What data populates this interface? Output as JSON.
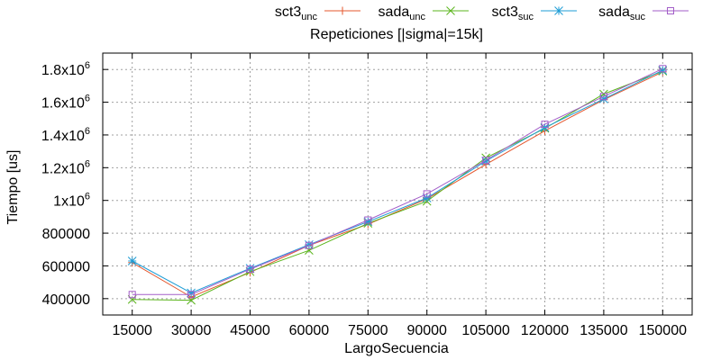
{
  "chart_data": {
    "type": "line",
    "title": "Repeticiones [|sigma|=15k]",
    "xlabel": "LargoSecuencia",
    "ylabel": "Tiempo [us]",
    "x": [
      15000,
      30000,
      45000,
      60000,
      75000,
      90000,
      105000,
      120000,
      135000,
      150000
    ],
    "x_tick_labels": [
      "15000",
      "30000",
      "45000",
      "60000",
      "75000",
      "90000",
      "105000",
      "120000",
      "135000",
      "150000"
    ],
    "ylim": [
      300000,
      1900000
    ],
    "y_ticks": [
      {
        "value": 400000,
        "base": "400000",
        "sup": ""
      },
      {
        "value": 600000,
        "base": "600000",
        "sup": ""
      },
      {
        "value": 800000,
        "base": "800000",
        "sup": ""
      },
      {
        "value": 1000000,
        "base": "1x10",
        "sup": "6"
      },
      {
        "value": 1200000,
        "base": "1.2x10",
        "sup": "6"
      },
      {
        "value": 1400000,
        "base": "1.4x10",
        "sup": "6"
      },
      {
        "value": 1600000,
        "base": "1.6x10",
        "sup": "6"
      },
      {
        "value": 1800000,
        "base": "1.8x10",
        "sup": "6"
      }
    ],
    "grid": true,
    "legend_position": "top-right",
    "series": [
      {
        "name": "sct3",
        "sub": "unc",
        "color": "#e4572e",
        "marker": "plus",
        "values": [
          620000,
          410000,
          560000,
          725000,
          855000,
          1010000,
          1220000,
          1425000,
          1615000,
          1785000
        ]
      },
      {
        "name": "sada",
        "sub": "unc",
        "color": "#5bb51c",
        "marker": "cross",
        "values": [
          395000,
          390000,
          565000,
          695000,
          860000,
          995000,
          1260000,
          1440000,
          1650000,
          1790000
        ]
      },
      {
        "name": "sct3",
        "sub": "suc",
        "color": "#1e9dd6",
        "marker": "star",
        "values": [
          630000,
          435000,
          585000,
          730000,
          870000,
          1015000,
          1240000,
          1445000,
          1620000,
          1795000
        ]
      },
      {
        "name": "sada",
        "sub": "suc",
        "color": "#a35ec8",
        "marker": "square",
        "values": [
          425000,
          425000,
          580000,
          725000,
          880000,
          1040000,
          1245000,
          1465000,
          1635000,
          1805000
        ]
      }
    ]
  }
}
